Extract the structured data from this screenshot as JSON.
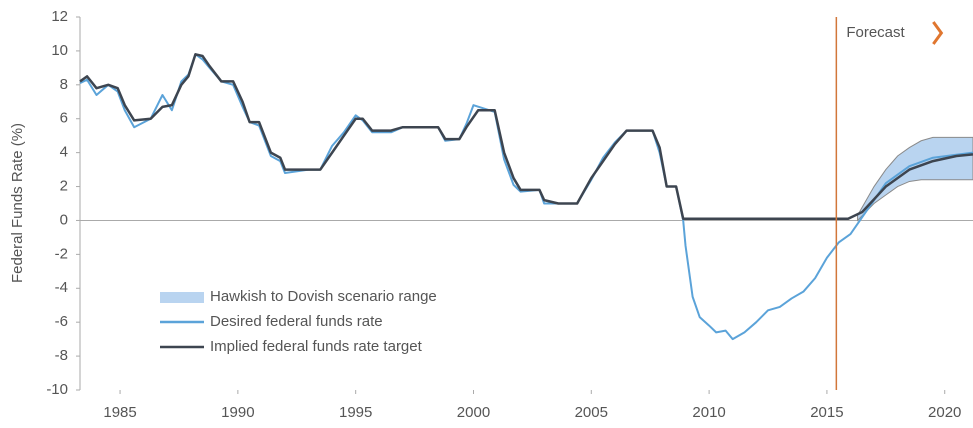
{
  "chart_data": {
    "type": "line",
    "y_label": "Federal Funds Rate (%)",
    "xlim": [
      1983.3,
      2021.2
    ],
    "ylim": [
      -10,
      12
    ],
    "xticks": [
      1985,
      1990,
      1995,
      2000,
      2005,
      2010,
      2015,
      2020
    ],
    "yticks": [
      -10,
      -8,
      -6,
      -4,
      -2,
      0,
      2,
      4,
      6,
      8,
      10,
      12
    ],
    "annotation": {
      "text": "Forecast",
      "x": 2015.4,
      "color": "#d2773a"
    },
    "band": {
      "name": "Hawkish to Dovish scenario range",
      "color": "#b9d4f0",
      "edge_color": "#8a8a8a",
      "x": [
        2016.3,
        2017.0,
        2017.5,
        2018.0,
        2018.5,
        2019.0,
        2019.5,
        2021.2
      ],
      "upper": [
        0.3,
        2.0,
        3.0,
        3.8,
        4.3,
        4.7,
        4.9,
        4.9
      ],
      "lower": [
        0.0,
        1.0,
        1.5,
        2.0,
        2.3,
        2.4,
        2.4,
        2.4
      ]
    },
    "series": [
      {
        "name": "Desired federal funds rate",
        "color": "#5ba3d9",
        "x": [
          1983.3,
          1983.6,
          1984.0,
          1984.5,
          1984.9,
          1985.2,
          1985.6,
          1986.3,
          1986.8,
          1987.2,
          1987.6,
          1987.9,
          1988.2,
          1988.5,
          1988.8,
          1989.3,
          1989.8,
          1990.2,
          1990.5,
          1990.9,
          1991.4,
          1991.8,
          1992.0,
          1993.0,
          1993.5,
          1994.0,
          1994.5,
          1995.0,
          1995.3,
          1995.7,
          1996.5,
          1997.0,
          1998.5,
          1998.8,
          1999.4,
          1999.7,
          2000.0,
          2000.9,
          2001.3,
          2001.7,
          2002.0,
          2002.8,
          2003.0,
          2003.6,
          2004.4,
          2005.0,
          2005.5,
          2006.0,
          2006.5,
          2007.6,
          2007.9,
          2008.2,
          2008.6,
          2008.9,
          2009.0,
          2009.3,
          2009.6,
          2010.0,
          2010.3,
          2010.7,
          2011.0,
          2011.5,
          2012.0,
          2012.5,
          2013.0,
          2013.5,
          2014.0,
          2014.5,
          2015.0,
          2015.5,
          2016.0,
          2016.5,
          2017.5,
          2018.5,
          2019.5,
          2021.2
        ],
        "values": [
          8.1,
          8.3,
          7.4,
          8.0,
          7.6,
          6.5,
          5.5,
          6.0,
          7.4,
          6.5,
          8.2,
          8.6,
          9.8,
          9.5,
          9.0,
          8.2,
          8.0,
          6.7,
          5.8,
          5.6,
          3.8,
          3.5,
          2.8,
          3.0,
          3.0,
          4.4,
          5.2,
          6.2,
          5.9,
          5.2,
          5.2,
          5.5,
          5.5,
          4.7,
          4.8,
          5.7,
          6.8,
          6.4,
          3.6,
          2.1,
          1.7,
          1.8,
          1.0,
          1.0,
          1.0,
          2.4,
          3.7,
          4.6,
          5.3,
          5.3,
          4.0,
          2.0,
          2.0,
          0.0,
          -1.5,
          -4.5,
          -5.7,
          -6.2,
          -6.6,
          -6.5,
          -7.0,
          -6.6,
          -6.0,
          -5.3,
          -5.1,
          -4.6,
          -4.2,
          -3.4,
          -2.2,
          -1.3,
          -0.8,
          0.2,
          2.2,
          3.2,
          3.7,
          4.0
        ]
      },
      {
        "name": "Implied federal funds rate target",
        "color": "#3d4550",
        "x": [
          1983.3,
          1983.6,
          1984.0,
          1984.5,
          1984.9,
          1985.2,
          1985.6,
          1986.3,
          1986.8,
          1987.2,
          1987.6,
          1987.9,
          1988.2,
          1988.5,
          1988.8,
          1989.3,
          1989.8,
          1990.2,
          1990.5,
          1990.9,
          1991.4,
          1991.8,
          1992.0,
          1993.0,
          1993.5,
          1994.0,
          1994.5,
          1995.0,
          1995.3,
          1995.7,
          1996.5,
          1997.0,
          1998.5,
          1998.8,
          1999.4,
          1999.7,
          2000.2,
          2000.9,
          2001.3,
          2001.7,
          2002.0,
          2002.8,
          2003.0,
          2003.6,
          2004.4,
          2005.0,
          2005.5,
          2006.0,
          2006.5,
          2007.6,
          2007.9,
          2008.2,
          2008.6,
          2008.9,
          2015.9,
          2016.5,
          2017.5,
          2018.5,
          2019.5,
          2020.5,
          2021.2
        ],
        "values": [
          8.2,
          8.5,
          7.8,
          8.0,
          7.8,
          6.8,
          5.9,
          6.0,
          6.7,
          6.8,
          8.0,
          8.5,
          9.8,
          9.7,
          9.1,
          8.2,
          8.2,
          7.0,
          5.8,
          5.8,
          4.0,
          3.7,
          3.0,
          3.0,
          3.0,
          4.0,
          5.0,
          6.0,
          6.0,
          5.3,
          5.3,
          5.5,
          5.5,
          4.8,
          4.8,
          5.5,
          6.5,
          6.5,
          4.0,
          2.5,
          1.8,
          1.8,
          1.2,
          1.0,
          1.0,
          2.5,
          3.5,
          4.5,
          5.3,
          5.3,
          4.3,
          2.0,
          2.0,
          0.1,
          0.1,
          0.5,
          2.0,
          3.0,
          3.5,
          3.8,
          3.9
        ]
      }
    ]
  }
}
